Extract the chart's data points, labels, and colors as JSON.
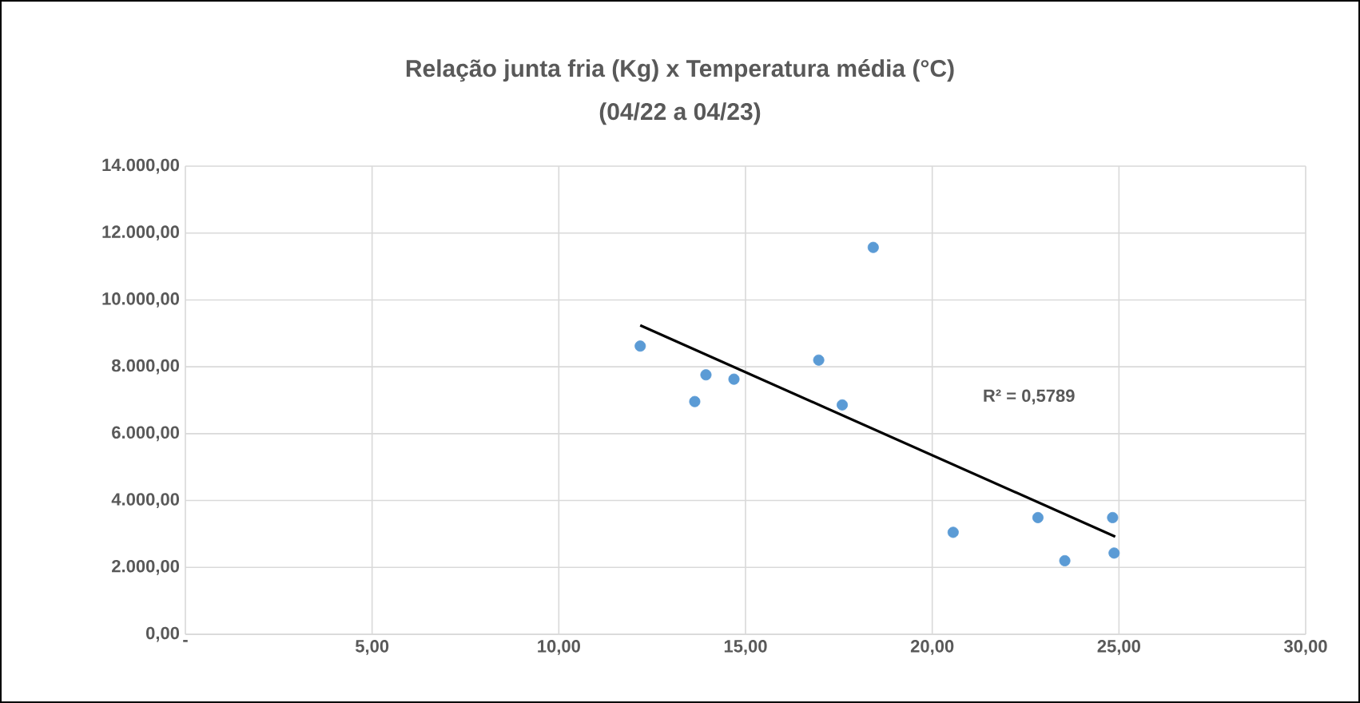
{
  "chart_data": {
    "type": "scatter",
    "title": "Relação junta fria (Kg)  x Temperatura média (°C)",
    "subtitle": "(04/22 a 04/23)",
    "xlim": [
      0,
      30
    ],
    "ylim": [
      0,
      14000
    ],
    "xticks": [
      {
        "value": 0,
        "label": "-"
      },
      {
        "value": 5,
        "label": "5,00"
      },
      {
        "value": 10,
        "label": "10,00"
      },
      {
        "value": 15,
        "label": "15,00"
      },
      {
        "value": 20,
        "label": "20,00"
      },
      {
        "value": 25,
        "label": "25,00"
      },
      {
        "value": 30,
        "label": "30,00"
      }
    ],
    "yticks": [
      {
        "value": 0,
        "label": "0,00"
      },
      {
        "value": 2000,
        "label": "2.000,00"
      },
      {
        "value": 4000,
        "label": "4.000,00"
      },
      {
        "value": 6000,
        "label": "6.000,00"
      },
      {
        "value": 8000,
        "label": "8.000,00"
      },
      {
        "value": 10000,
        "label": "10.000,00"
      },
      {
        "value": 12000,
        "label": "12.000,00"
      },
      {
        "value": 14000,
        "label": "14.000,00"
      }
    ],
    "grid": true,
    "marker": "circle",
    "series": [
      {
        "color": "#5b9bd5",
        "x": [
          12.18,
          13.94,
          13.64,
          14.69,
          16.96,
          17.59,
          18.42,
          20.56,
          22.83,
          23.55,
          24.83,
          24.87
        ],
        "values": [
          8620,
          7760,
          6960,
          7630,
          8200,
          6860,
          11570,
          3050,
          3490,
          2200,
          3490,
          2430
        ]
      },
      {
        "type": "line",
        "color": "#000000",
        "marker": "none",
        "x": [
          12.18,
          24.9
        ],
        "values": [
          9240,
          2920
        ]
      }
    ],
    "annotations": [
      "R² = 0,5789"
    ]
  }
}
